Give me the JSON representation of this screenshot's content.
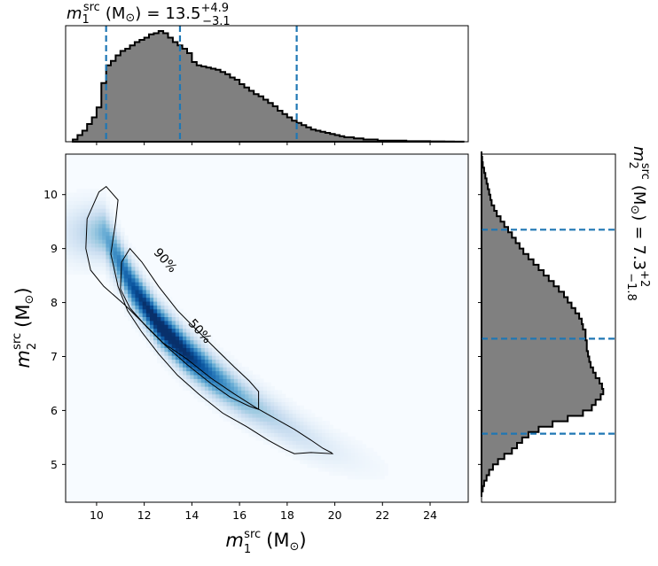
{
  "chart_data": [
    {
      "type": "heatmap",
      "name": "joint",
      "xlabel_var": "m",
      "xlabel_sub": "1",
      "xlabel_sup": "src",
      "xlabel_unit": "(M",
      "xlabel_sun": "⊙",
      "xlabel_close": ")",
      "ylabel_var": "m",
      "ylabel_sub": "2",
      "ylabel_sup": "src",
      "ylabel_unit": "(M",
      "ylabel_sun": "⊙",
      "ylabel_close": ")",
      "xlim": [
        8.7,
        25.6
      ],
      "ylim": [
        4.3,
        10.75
      ],
      "xticks": [
        "10",
        "12",
        "14",
        "16",
        "18",
        "20",
        "22",
        "24"
      ],
      "yticks": [
        "5",
        "6",
        "7",
        "8",
        "9",
        "10"
      ],
      "colormap": "Blues",
      "contour_labels": [
        "90%",
        "50%"
      ],
      "contours": [
        {
          "level": "90%",
          "points": [
            [
              10.4,
              10.15
            ],
            [
              10.1,
              10.05
            ],
            [
              9.6,
              9.55
            ],
            [
              9.55,
              9.0
            ],
            [
              9.75,
              8.6
            ],
            [
              10.3,
              8.3
            ],
            [
              11.2,
              7.95
            ],
            [
              12.0,
              7.6
            ],
            [
              12.8,
              7.25
            ],
            [
              13.8,
              6.95
            ],
            [
              14.8,
              6.6
            ],
            [
              15.8,
              6.3
            ],
            [
              16.7,
              6.05
            ],
            [
              17.5,
              5.85
            ],
            [
              18.3,
              5.65
            ],
            [
              19.0,
              5.45
            ],
            [
              19.5,
              5.3
            ],
            [
              19.85,
              5.22
            ],
            [
              19.9,
              5.2
            ],
            [
              19.0,
              5.22
            ],
            [
              18.3,
              5.2
            ],
            [
              17.9,
              5.28
            ],
            [
              17.2,
              5.45
            ],
            [
              16.3,
              5.7
            ],
            [
              15.3,
              5.95
            ],
            [
              14.3,
              6.3
            ],
            [
              13.4,
              6.65
            ],
            [
              12.6,
              7.05
            ],
            [
              11.9,
              7.45
            ],
            [
              11.3,
              7.85
            ],
            [
              10.9,
              8.3
            ],
            [
              10.6,
              8.9
            ],
            [
              10.8,
              9.5
            ],
            [
              10.9,
              9.9
            ]
          ]
        },
        {
          "level": "50%",
          "points": [
            [
              11.4,
              9.0
            ],
            [
              11.05,
              8.75
            ],
            [
              11.0,
              8.25
            ],
            [
              11.4,
              7.9
            ],
            [
              12.1,
              7.55
            ],
            [
              12.9,
              7.2
            ],
            [
              13.8,
              6.85
            ],
            [
              14.8,
              6.5
            ],
            [
              15.6,
              6.25
            ],
            [
              16.4,
              6.08
            ],
            [
              16.8,
              6.02
            ],
            [
              16.8,
              6.35
            ],
            [
              16.4,
              6.55
            ],
            [
              15.8,
              6.8
            ],
            [
              15.1,
              7.1
            ],
            [
              14.3,
              7.45
            ],
            [
              13.4,
              7.85
            ],
            [
              12.6,
              8.3
            ],
            [
              11.9,
              8.75
            ]
          ]
        }
      ]
    },
    {
      "type": "histogram",
      "name": "m1_marginal",
      "title_var": "m",
      "title_sub": "1",
      "title_sup": "src",
      "title_unit": "(M",
      "title_sun": "⊙",
      "title_close": ")",
      "title_eq": "=",
      "title_value": "13.5",
      "title_plus": "+4.9",
      "title_minus": "−3.1",
      "xlim": [
        8.7,
        25.6
      ],
      "bin_start": 9.0,
      "bin_width": 0.2,
      "density": [
        0.02,
        0.06,
        0.1,
        0.16,
        0.22,
        0.31,
        0.53,
        0.69,
        0.73,
        0.78,
        0.82,
        0.84,
        0.87,
        0.9,
        0.92,
        0.94,
        0.97,
        0.98,
        1.0,
        0.98,
        0.94,
        0.9,
        0.87,
        0.84,
        0.8,
        0.72,
        0.69,
        0.68,
        0.67,
        0.66,
        0.65,
        0.63,
        0.61,
        0.58,
        0.56,
        0.52,
        0.49,
        0.46,
        0.43,
        0.41,
        0.38,
        0.35,
        0.32,
        0.28,
        0.25,
        0.22,
        0.19,
        0.17,
        0.15,
        0.13,
        0.11,
        0.1,
        0.09,
        0.08,
        0.07,
        0.06,
        0.05,
        0.04,
        0.04,
        0.03,
        0.03,
        0.02,
        0.02,
        0.02,
        0.01,
        0.01,
        0.01,
        0.01,
        0.01,
        0.01,
        0.005,
        0.005,
        0.005,
        0.005,
        0.005,
        0.003,
        0.003,
        0.003,
        0.002,
        0.002,
        0.001,
        0.001
      ],
      "quantile_lines": [
        10.4,
        13.5,
        18.4
      ]
    },
    {
      "type": "histogram",
      "name": "m2_marginal",
      "orientation": "horizontal",
      "title_var": "m",
      "title_sub": "2",
      "title_sup": "src",
      "title_unit": "(M",
      "title_sun": "⊙",
      "title_close": ")",
      "title_eq": "=",
      "title_value": "7.3",
      "title_plus": "+2",
      "title_minus": "−1.8",
      "ylim": [
        4.3,
        10.75
      ],
      "bin_start": 4.4,
      "bin_width": 0.1,
      "density": [
        0.0,
        0.01,
        0.02,
        0.04,
        0.06,
        0.09,
        0.13,
        0.18,
        0.24,
        0.28,
        0.32,
        0.37,
        0.45,
        0.56,
        0.68,
        0.8,
        0.87,
        0.9,
        0.94,
        0.96,
        0.95,
        0.93,
        0.9,
        0.88,
        0.86,
        0.85,
        0.84,
        0.83,
        0.83,
        0.82,
        0.82,
        0.8,
        0.79,
        0.77,
        0.74,
        0.71,
        0.68,
        0.65,
        0.61,
        0.57,
        0.53,
        0.49,
        0.45,
        0.41,
        0.37,
        0.33,
        0.3,
        0.27,
        0.24,
        0.21,
        0.18,
        0.15,
        0.12,
        0.1,
        0.08,
        0.07,
        0.06,
        0.05,
        0.04,
        0.03,
        0.02,
        0.01,
        0.005,
        0.0
      ],
      "quantile_lines": [
        5.57,
        7.33,
        9.35
      ]
    }
  ]
}
